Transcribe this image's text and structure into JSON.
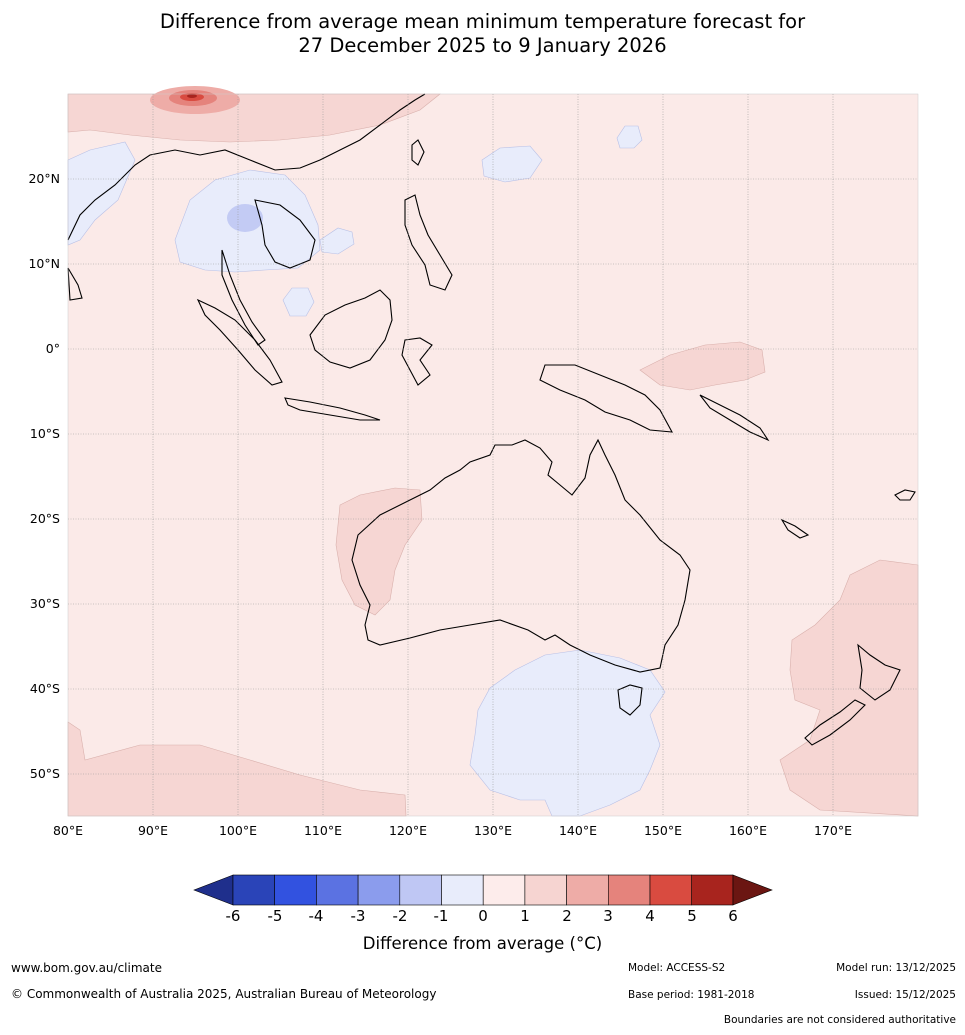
{
  "title": {
    "line1": "Difference from average mean minimum temperature forecast for",
    "line2": "27 December 2025 to 9 January 2026"
  },
  "map": {
    "lat_labels": [
      "20°N",
      "10°N",
      "0°",
      "10°S",
      "20°S",
      "30°S",
      "40°S",
      "50°S"
    ],
    "lon_labels": [
      "80°E",
      "90°E",
      "100°E",
      "110°E",
      "120°E",
      "130°E",
      "140°E",
      "150°E",
      "160°E",
      "170°E"
    ],
    "background_anomaly_color": "#fbeae8"
  },
  "colorbar": {
    "tick_labels": [
      "-6",
      "-5",
      "-4",
      "-3",
      "-2",
      "-1",
      "0",
      "1",
      "2",
      "3",
      "4",
      "5",
      "6"
    ],
    "colors": [
      "#1f2f8c",
      "#2a44b8",
      "#3252e0",
      "#5b72e2",
      "#8b9ced",
      "#bfc7f4",
      "#e8ecfb",
      "#fdeceb",
      "#f6d4d1",
      "#eeaca7",
      "#e5837c",
      "#d94b40",
      "#a8241e",
      "#6b1612"
    ],
    "title": "Difference from average (°C)"
  },
  "footer": {
    "website": "www.bom.gov.au/climate",
    "copyright": "© Commonwealth of Australia 2025, Australian Bureau of Meteorology",
    "model": "Model: ACCESS-S2",
    "model_run": "Model run: 13/12/2025",
    "base_period": "Base period: 1981-2018",
    "issued": "Issued: 15/12/2025",
    "disclaimer": "Boundaries are not considered authoritative"
  }
}
